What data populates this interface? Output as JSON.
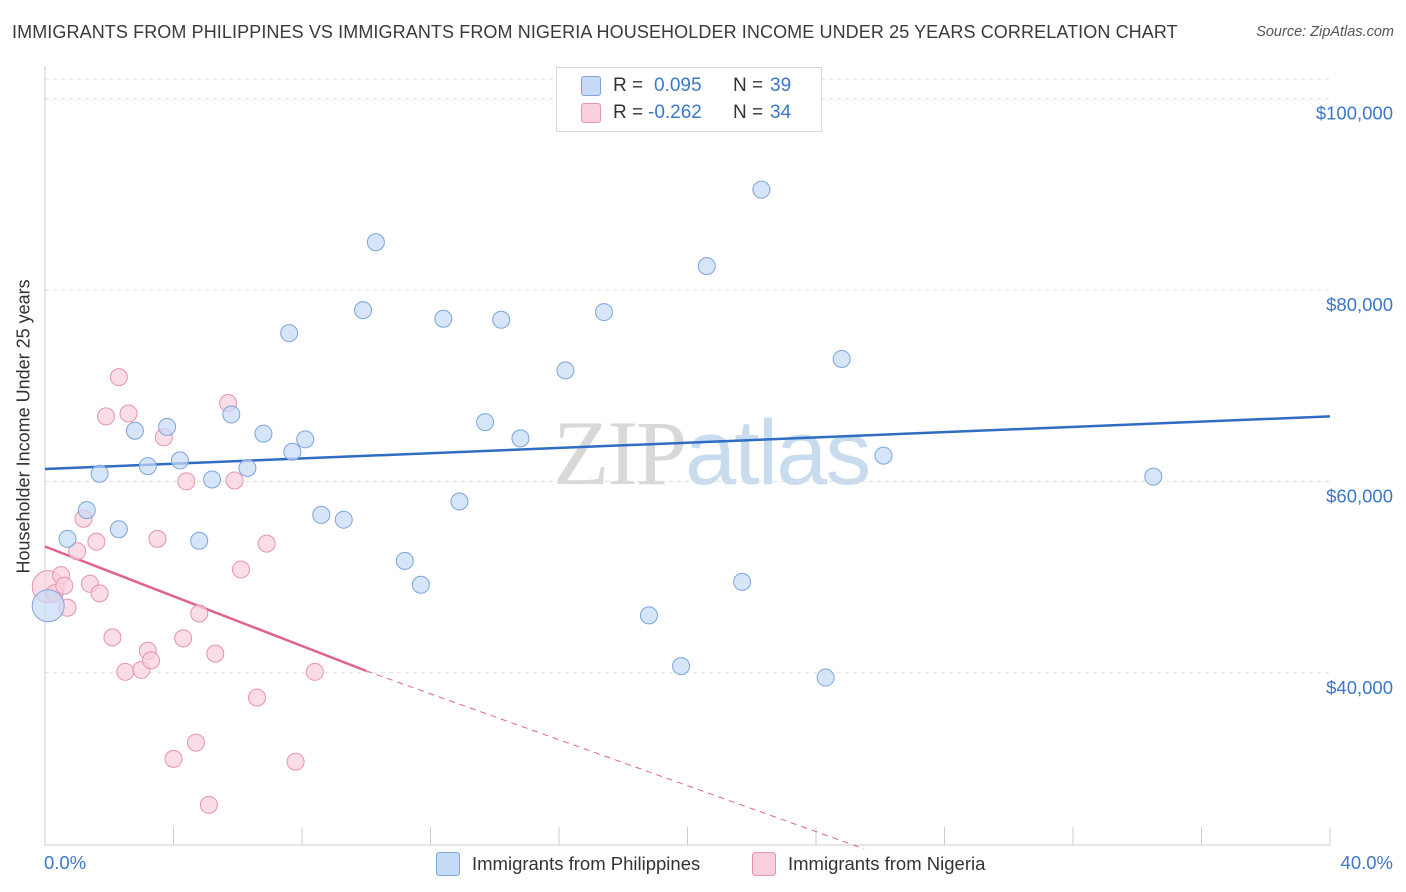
{
  "header": {
    "title": "IMMIGRANTS FROM PHILIPPINES VS IMMIGRANTS FROM NIGERIA HOUSEHOLDER INCOME UNDER 25 YEARS CORRELATION CHART",
    "source": "Source: ZipAtlas.com"
  },
  "watermark": {
    "zip": "ZIP",
    "atlas": "atlas"
  },
  "legend": {
    "rows": [
      {
        "r_label": "R =",
        "r_value": "0.095",
        "n_label": "N =",
        "n_value": "39"
      },
      {
        "r_label": "R =",
        "r_value": "-0.262",
        "n_label": "N =",
        "n_value": "34"
      }
    ]
  },
  "colors": {
    "philippines_fill": "#c6daf5",
    "philippines_stroke": "#7ba5dc",
    "philippines_line": "#2f6cc4",
    "nigeria_fill": "#f9cfdc",
    "nigeria_stroke": "#e892ae",
    "nigeria_line": "#e0628e",
    "axis_label": "#3b78c8",
    "grid": "#dddddd"
  },
  "chart_data": {
    "type": "scatter",
    "title": "IMMIGRANTS FROM PHILIPPINES VS IMMIGRANTS FROM NIGERIA HOUSEHOLDER INCOME UNDER 25 YEARS CORRELATION CHART",
    "xlabel": "",
    "ylabel": "Householder Income Under 25 years",
    "xlim": [
      0,
      40
    ],
    "ylim": [
      22000,
      103000
    ],
    "x_tick_labels": [
      "0.0%",
      "40.0%"
    ],
    "y_ticks": [
      40000,
      60000,
      80000,
      100000
    ],
    "y_tick_labels": [
      "$40,000",
      "$60,000",
      "$80,000",
      "$100,000"
    ],
    "grid": true,
    "legend_position": "top-center",
    "series": [
      {
        "name": "Immigrants from Philippines",
        "r": 0.095,
        "n": 39,
        "trend": {
          "x": [
            0,
            40
          ],
          "y": [
            61300,
            66800
          ]
        },
        "points": [
          {
            "x": 0.1,
            "y": 47000,
            "big": true
          },
          {
            "x": 0.7,
            "y": 54000
          },
          {
            "x": 1.3,
            "y": 57000
          },
          {
            "x": 1.7,
            "y": 60800
          },
          {
            "x": 2.3,
            "y": 55000
          },
          {
            "x": 2.8,
            "y": 65300
          },
          {
            "x": 3.2,
            "y": 61600
          },
          {
            "x": 3.8,
            "y": 65700
          },
          {
            "x": 4.2,
            "y": 62200
          },
          {
            "x": 4.8,
            "y": 53800
          },
          {
            "x": 5.2,
            "y": 60200
          },
          {
            "x": 5.8,
            "y": 67000
          },
          {
            "x": 6.3,
            "y": 61400
          },
          {
            "x": 6.8,
            "y": 65000
          },
          {
            "x": 7.6,
            "y": 75500
          },
          {
            "x": 7.7,
            "y": 63100
          },
          {
            "x": 8.1,
            "y": 64400
          },
          {
            "x": 8.6,
            "y": 56500
          },
          {
            "x": 9.3,
            "y": 56000
          },
          {
            "x": 9.9,
            "y": 77900
          },
          {
            "x": 10.3,
            "y": 85000
          },
          {
            "x": 11.2,
            "y": 51700
          },
          {
            "x": 11.7,
            "y": 49200
          },
          {
            "x": 12.4,
            "y": 77000
          },
          {
            "x": 12.9,
            "y": 57900
          },
          {
            "x": 13.7,
            "y": 66200
          },
          {
            "x": 14.2,
            "y": 76900
          },
          {
            "x": 14.8,
            "y": 64500
          },
          {
            "x": 16.2,
            "y": 71600
          },
          {
            "x": 17.4,
            "y": 77700
          },
          {
            "x": 18.8,
            "y": 46000
          },
          {
            "x": 19.8,
            "y": 40700
          },
          {
            "x": 20.6,
            "y": 82500
          },
          {
            "x": 21.7,
            "y": 49500
          },
          {
            "x": 22.3,
            "y": 90500
          },
          {
            "x": 24.3,
            "y": 39500
          },
          {
            "x": 24.8,
            "y": 72800
          },
          {
            "x": 26.1,
            "y": 62700
          },
          {
            "x": 34.5,
            "y": 60500
          }
        ]
      },
      {
        "name": "Immigrants from Nigeria",
        "r": -0.262,
        "n": 34,
        "trend": {
          "x": [
            0,
            10
          ],
          "y": [
            53200,
            40200
          ]
        },
        "trend_dashed": {
          "x": [
            10,
            25.5
          ],
          "y": [
            40200,
            21600
          ]
        },
        "points": [
          {
            "x": 0.1,
            "y": 49000,
            "big": true
          },
          {
            "x": 0.3,
            "y": 48300
          },
          {
            "x": 0.5,
            "y": 50200
          },
          {
            "x": 0.6,
            "y": 49100
          },
          {
            "x": 0.7,
            "y": 46800
          },
          {
            "x": 1.0,
            "y": 52700
          },
          {
            "x": 1.2,
            "y": 56100
          },
          {
            "x": 1.4,
            "y": 49300
          },
          {
            "x": 1.6,
            "y": 53700
          },
          {
            "x": 1.7,
            "y": 48300
          },
          {
            "x": 1.9,
            "y": 66800
          },
          {
            "x": 2.1,
            "y": 43700
          },
          {
            "x": 2.3,
            "y": 70900
          },
          {
            "x": 2.5,
            "y": 40100
          },
          {
            "x": 2.6,
            "y": 67100
          },
          {
            "x": 3.0,
            "y": 40300
          },
          {
            "x": 3.2,
            "y": 42300
          },
          {
            "x": 3.3,
            "y": 41300
          },
          {
            "x": 3.5,
            "y": 54000
          },
          {
            "x": 3.7,
            "y": 64600
          },
          {
            "x": 4.0,
            "y": 31000
          },
          {
            "x": 4.3,
            "y": 43600
          },
          {
            "x": 4.4,
            "y": 60000
          },
          {
            "x": 4.7,
            "y": 32700
          },
          {
            "x": 4.8,
            "y": 46200
          },
          {
            "x": 5.1,
            "y": 26200
          },
          {
            "x": 5.3,
            "y": 42000
          },
          {
            "x": 5.7,
            "y": 68200
          },
          {
            "x": 5.9,
            "y": 60100
          },
          {
            "x": 6.1,
            "y": 50800
          },
          {
            "x": 6.6,
            "y": 37400
          },
          {
            "x": 6.9,
            "y": 53500
          },
          {
            "x": 7.8,
            "y": 30700
          },
          {
            "x": 8.4,
            "y": 40100
          }
        ]
      }
    ]
  },
  "bottom_legend": {
    "items": [
      "Immigrants from Philippines",
      "Immigrants from Nigeria"
    ]
  }
}
